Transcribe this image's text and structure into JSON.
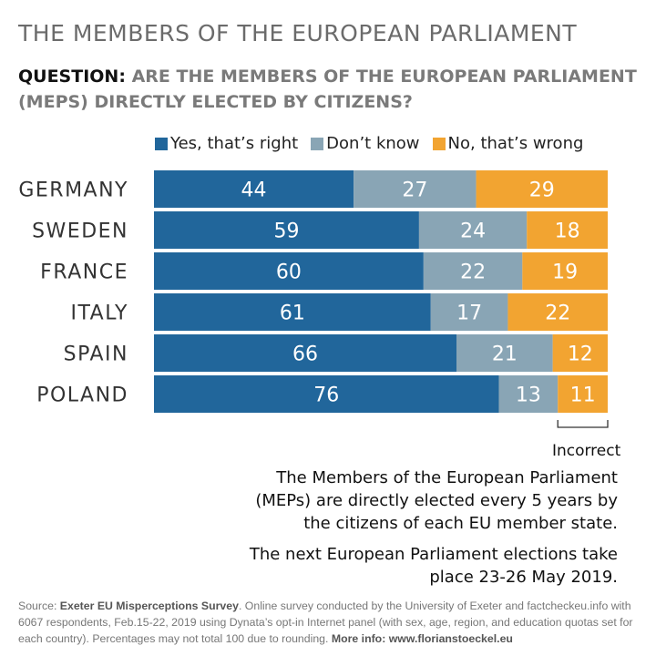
{
  "title": "THE MEMBERS OF THE EUROPEAN PARLIAMENT",
  "question": {
    "label": "QUESTION:",
    "text": "ARE THE MEMBERS OF THE EUROPEAN PARLIAMENT (MEPS) DIRECTLY ELECTED BY CITIZENS?"
  },
  "chart_data": {
    "type": "bar",
    "orientation": "horizontal",
    "stacked": true,
    "categories": [
      "GERMANY",
      "SWEDEN",
      "FRANCE",
      "ITALY",
      "SPAIN",
      "POLAND"
    ],
    "series": [
      {
        "name": "Yes, that’s right",
        "color": "#21669b",
        "values": [
          44,
          59,
          60,
          61,
          66,
          76
        ]
      },
      {
        "name": "Don’t know",
        "color": "#89a5b5",
        "values": [
          27,
          24,
          22,
          17,
          21,
          13
        ]
      },
      {
        "name": "No, that’s wrong",
        "color": "#f2a431",
        "values": [
          29,
          18,
          19,
          22,
          12,
          11
        ]
      }
    ],
    "legend_position": "top",
    "grid": false,
    "annotation": "Incorrect"
  },
  "notes": [
    "The Members of the European Parliament (MEPs) are directly elected every 5 years by the citizens of each EU member state.",
    "The next European Parliament elections take place 23-26 May 2019."
  ],
  "source": {
    "prefix": "Source: ",
    "survey": "Exeter EU Misperceptions Survey",
    "body": ". Online survey conducted by the University of Exeter and factcheckeu.info with 6067 respondents, Feb.15-22, 2019 using Dynata’s opt-in Internet panel (with sex, age, region, and education quotas set for each country). Percentages may not total 100 due to rounding. ",
    "more": "More info: www.florianstoeckel.eu"
  }
}
